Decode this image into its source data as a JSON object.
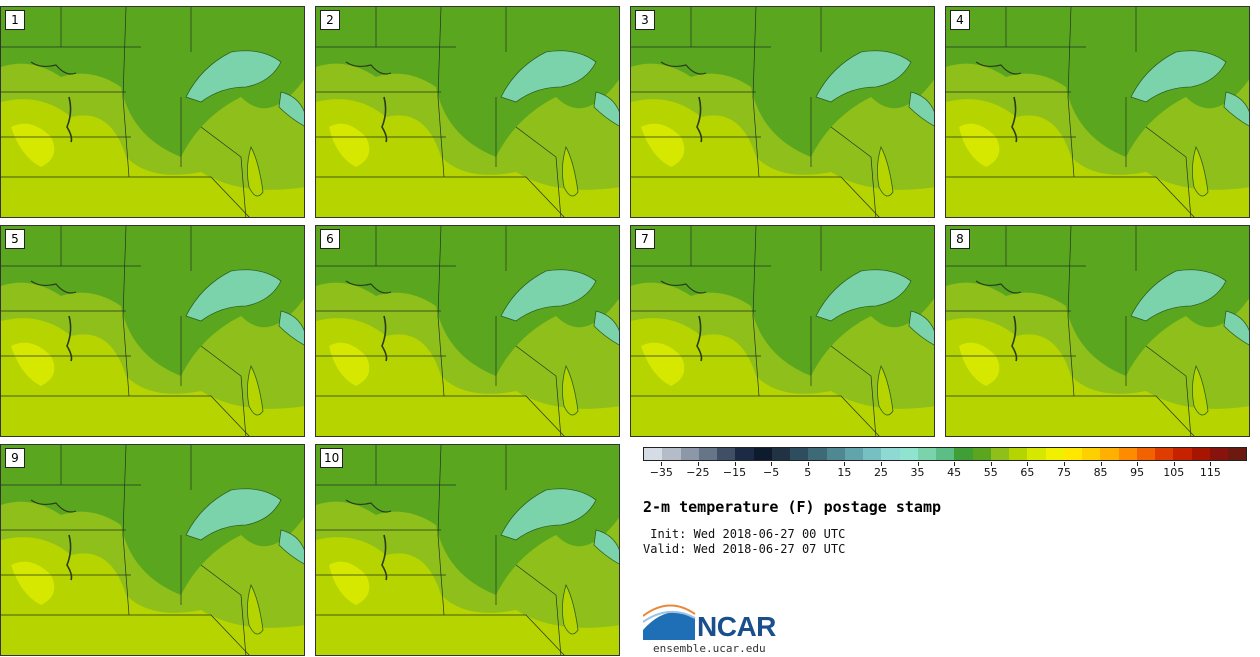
{
  "figure": {
    "title": "2-m temperature (F) postage stamp",
    "init_line": " Init: Wed 2018-06-27 00 UTC",
    "valid_line": "Valid: Wed 2018-06-27 07 UTC",
    "website": "ensemble.ucar.edu",
    "logo_text": "NCAR"
  },
  "members": [
    "1",
    "2",
    "3",
    "4",
    "5",
    "6",
    "7",
    "8",
    "9",
    "10"
  ],
  "colorbar": {
    "colors": [
      "#d6dce4",
      "#b3bcc7",
      "#8c98a7",
      "#667587",
      "#3f4f66",
      "#1c2b45",
      "#0e1a2e",
      "#1f3345",
      "#2e4d5e",
      "#3e6a78",
      "#4f8893",
      "#61a4ab",
      "#77c0c2",
      "#8ed9d4",
      "#8fe3cf",
      "#7bd3ac",
      "#5cbd85",
      "#3f9e35",
      "#5aa71f",
      "#8fbf1a",
      "#b5d400",
      "#d6e800",
      "#f0f000",
      "#ffe800",
      "#ffd000",
      "#ffb000",
      "#ff8c00",
      "#f26200",
      "#de3c00",
      "#c62200",
      "#a71500",
      "#88130d",
      "#6c1a10"
    ],
    "tick_values": [
      -35,
      -25,
      -15,
      -5,
      5,
      15,
      25,
      35,
      45,
      55,
      65,
      75,
      85,
      95,
      105,
      115
    ],
    "tick_labels": [
      "−35",
      "−25",
      "−15",
      "−5",
      "5",
      "15",
      "25",
      "35",
      "45",
      "55",
      "65",
      "75",
      "85",
      "95",
      "105",
      "115"
    ],
    "range": [
      -40,
      125
    ]
  }
}
